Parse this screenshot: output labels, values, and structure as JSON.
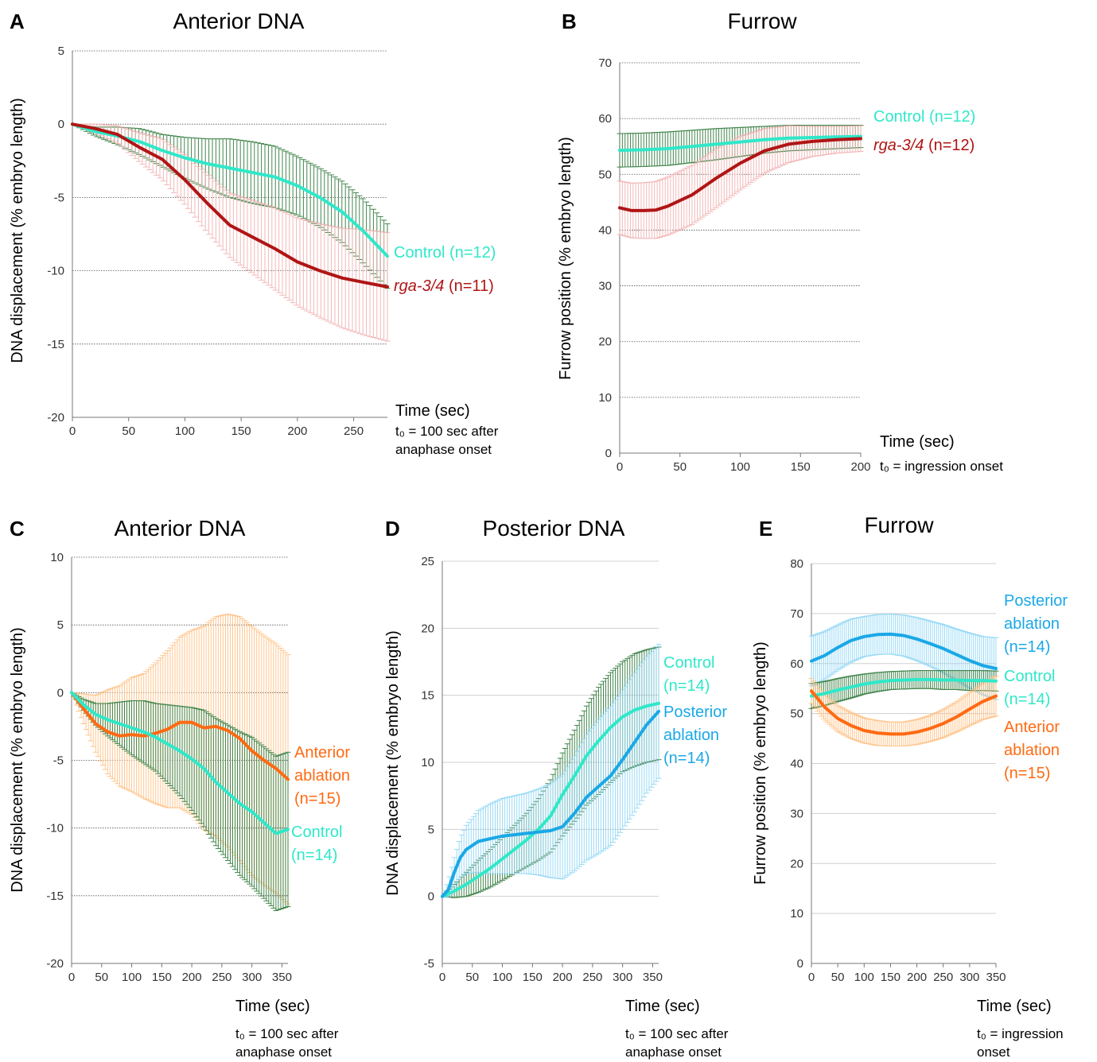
{
  "colors": {
    "control": "#2fe8c9",
    "control_err": "#2f7a3a",
    "rga": "#b01515",
    "rga_err": "#f2b0b0",
    "anterior": "#ff6a13",
    "anterior_err": "#ffbf80",
    "posterior": "#1aa8e6",
    "posterior_err": "#8fd6f5",
    "grid": "#999999"
  },
  "chart_data": [
    {
      "id": "A",
      "type": "line",
      "panel_letter": "A",
      "title": "Anterior DNA",
      "xlabel": "Time (sec)",
      "ylabel": "DNA displacement  (% embryo length)",
      "note_line1": "t₀ = 100 sec after",
      "note_line2": "anaphase onset",
      "xlim": [
        0,
        280
      ],
      "ylim": [
        -20,
        5
      ],
      "xticks": [
        0,
        50,
        100,
        150,
        200,
        250
      ],
      "yticks": [
        5,
        0,
        -5,
        -10,
        -15,
        -20
      ],
      "grid": "horizontal dotted",
      "series": [
        {
          "key": "control",
          "name": "Control",
          "n_label": "(n=12)",
          "italic": false,
          "x": [
            0,
            20,
            40,
            60,
            80,
            100,
            120,
            140,
            160,
            180,
            200,
            220,
            240,
            260,
            280
          ],
          "y": [
            0,
            -0.5,
            -0.8,
            -1.2,
            -1.8,
            -2.3,
            -2.7,
            -3.0,
            -3.3,
            -3.6,
            -4.2,
            -5.0,
            -6.0,
            -7.4,
            -9.0
          ],
          "err": [
            0,
            0.3,
            0.6,
            0.9,
            1.1,
            1.4,
            1.7,
            2.0,
            2.1,
            2.1,
            2.0,
            2.0,
            2.1,
            2.2,
            2.2
          ]
        },
        {
          "key": "rga",
          "name": "rga-3/4",
          "n_label": "(n=11)",
          "italic": true,
          "x": [
            0,
            20,
            40,
            60,
            80,
            100,
            120,
            140,
            160,
            180,
            200,
            220,
            240,
            260,
            280
          ],
          "y": [
            0,
            -0.3,
            -0.7,
            -1.6,
            -2.4,
            -3.8,
            -5.4,
            -6.9,
            -7.7,
            -8.5,
            -9.4,
            -10.0,
            -10.5,
            -10.8,
            -11.1
          ],
          "err": [
            0,
            0.3,
            0.6,
            1.0,
            1.4,
            1.7,
            2.0,
            2.2,
            2.5,
            2.8,
            3.0,
            3.2,
            3.4,
            3.6,
            3.7
          ]
        }
      ]
    },
    {
      "id": "B",
      "type": "line",
      "panel_letter": "B",
      "title": "Furrow",
      "xlabel": "Time (sec)",
      "ylabel": "Furrow position  (% embryo length)",
      "note_line1": "t₀ = ingression onset",
      "note_line2": "",
      "xlim": [
        0,
        200
      ],
      "ylim": [
        0,
        70
      ],
      "xticks": [
        0,
        50,
        100,
        150,
        200
      ],
      "yticks": [
        70,
        60,
        50,
        40,
        30,
        20,
        10,
        0
      ],
      "grid": "horizontal dotted",
      "series": [
        {
          "key": "control",
          "name": "Control",
          "n_label": "(n=12)",
          "italic": false,
          "x": [
            0,
            20,
            40,
            60,
            80,
            100,
            120,
            140,
            160,
            180,
            200
          ],
          "y": [
            54.3,
            54.4,
            54.6,
            55.0,
            55.4,
            55.8,
            56.2,
            56.5,
            56.6,
            56.7,
            56.8
          ],
          "err": [
            3.0,
            3.0,
            3.0,
            2.9,
            2.8,
            2.6,
            2.4,
            2.3,
            2.2,
            2.1,
            2.0
          ]
        },
        {
          "key": "rga",
          "name": "rga-3/4",
          "n_label": "(n=12)",
          "italic": true,
          "x": [
            0,
            10,
            20,
            30,
            40,
            60,
            80,
            100,
            120,
            140,
            160,
            180,
            200
          ],
          "y": [
            44.0,
            43.5,
            43.5,
            43.6,
            44.3,
            46.3,
            49.3,
            52.0,
            54.2,
            55.4,
            55.9,
            56.2,
            56.4
          ],
          "err": [
            4.8,
            4.9,
            5.0,
            5.1,
            5.2,
            5.3,
            5.3,
            4.8,
            4.0,
            3.3,
            2.7,
            2.4,
            2.3
          ]
        }
      ]
    },
    {
      "id": "C",
      "type": "line",
      "panel_letter": "C",
      "title": "Anterior DNA",
      "xlabel": "Time (sec)",
      "ylabel": "DNA displacement  (% embryo length)",
      "note_line1": "t₀ = 100 sec after",
      "note_line2": "anaphase onset",
      "xlim": [
        0,
        360
      ],
      "ylim": [
        -20,
        10
      ],
      "xticks": [
        0,
        50,
        100,
        150,
        200,
        250,
        300,
        350
      ],
      "yticks": [
        10,
        5,
        0,
        -5,
        -10,
        -15,
        -20
      ],
      "grid": "horizontal dotted",
      "series": [
        {
          "key": "anterior",
          "name": "Anterior",
          "name2": "ablation",
          "n_label": "(n=15)",
          "italic": false,
          "x": [
            0,
            20,
            40,
            60,
            80,
            100,
            120,
            140,
            160,
            180,
            200,
            220,
            240,
            260,
            280,
            300,
            320,
            340,
            360
          ],
          "y": [
            0,
            -1.2,
            -2.3,
            -2.9,
            -3.2,
            -3.1,
            -3.2,
            -3.0,
            -2.7,
            -2.2,
            -2.2,
            -2.6,
            -2.5,
            -2.8,
            -3.4,
            -4.3,
            -5.0,
            -5.6,
            -6.4
          ],
          "err": [
            0,
            1.1,
            2.1,
            3.1,
            3.7,
            4.2,
            4.6,
            5.2,
            5.8,
            6.3,
            6.8,
            7.5,
            8.1,
            8.6,
            9.0,
            9.2,
            9.2,
            9.2,
            9.2
          ]
        },
        {
          "key": "control",
          "name": "Control",
          "n_label": "(n=14)",
          "italic": false,
          "x": [
            0,
            20,
            40,
            60,
            80,
            100,
            120,
            140,
            160,
            180,
            200,
            220,
            240,
            260,
            280,
            300,
            320,
            340,
            360
          ],
          "y": [
            0,
            -0.9,
            -1.6,
            -2.0,
            -2.3,
            -2.6,
            -2.9,
            -3.3,
            -3.8,
            -4.3,
            -4.9,
            -5.6,
            -6.6,
            -7.4,
            -8.2,
            -8.8,
            -9.6,
            -10.4,
            -10.1
          ],
          "err": [
            0,
            0.4,
            0.8,
            1.2,
            1.6,
            2.0,
            2.3,
            2.5,
            2.9,
            3.3,
            3.8,
            4.3,
            4.7,
            5.0,
            5.3,
            5.5,
            5.6,
            5.7,
            5.7
          ]
        }
      ]
    },
    {
      "id": "D",
      "type": "line",
      "panel_letter": "D",
      "title": "Posterior DNA",
      "xlabel": "Time (sec)",
      "ylabel": "DNA displacement  (% embryo length)",
      "note_line1": "t₀ = 100 sec after",
      "note_line2": "anaphase onset",
      "xlim": [
        0,
        360
      ],
      "ylim": [
        -5,
        25
      ],
      "xticks": [
        0,
        50,
        100,
        150,
        200,
        250,
        300,
        350
      ],
      "yticks": [
        25,
        20,
        15,
        10,
        5,
        0,
        -5
      ],
      "grid": "horizontal solid",
      "series": [
        {
          "key": "control",
          "name": "Control",
          "n_label": "(n=14)",
          "italic": false,
          "x": [
            0,
            20,
            40,
            60,
            80,
            100,
            120,
            140,
            160,
            180,
            200,
            220,
            240,
            260,
            280,
            300,
            320,
            340,
            360
          ],
          "y": [
            0,
            0.4,
            0.9,
            1.5,
            2.1,
            2.8,
            3.5,
            4.2,
            5.0,
            6.0,
            7.6,
            9.0,
            10.5,
            11.6,
            12.6,
            13.4,
            13.9,
            14.2,
            14.4
          ],
          "err": [
            0,
            0.5,
            0.9,
            1.2,
            1.4,
            1.6,
            1.8,
            2.0,
            2.3,
            2.7,
            3.1,
            3.4,
            3.7,
            4.0,
            4.1,
            4.1,
            4.2,
            4.2,
            4.2
          ]
        },
        {
          "key": "posterior",
          "name": "Posterior",
          "name2": "ablation",
          "n_label": "(n=14)",
          "italic": false,
          "x": [
            0,
            10,
            20,
            30,
            40,
            60,
            80,
            100,
            120,
            140,
            160,
            180,
            200,
            220,
            240,
            260,
            280,
            300,
            320,
            340,
            360
          ],
          "y": [
            0,
            0.5,
            1.8,
            2.9,
            3.5,
            4.1,
            4.3,
            4.5,
            4.6,
            4.7,
            4.8,
            4.9,
            5.2,
            6.2,
            7.4,
            8.2,
            9.0,
            10.2,
            11.5,
            12.8,
            13.8
          ],
          "err": [
            0,
            0.6,
            1.1,
            1.5,
            1.8,
            2.3,
            2.6,
            2.8,
            2.9,
            3.0,
            3.2,
            3.5,
            3.9,
            4.3,
            4.7,
            5.0,
            5.2,
            5.2,
            5.2,
            5.1,
            5.0
          ]
        }
      ]
    },
    {
      "id": "E",
      "type": "line",
      "panel_letter": "E",
      "title": "Furrow",
      "xlabel": "Time (sec)",
      "ylabel": "Furrow position  (% embryo length)",
      "note_line1": "t₀ = ingression",
      "note_line2": "onset",
      "xlim": [
        0,
        350
      ],
      "ylim": [
        0,
        80
      ],
      "xticks": [
        0,
        50,
        100,
        150,
        200,
        250,
        300,
        350
      ],
      "yticks": [
        80,
        70,
        60,
        50,
        40,
        30,
        20,
        10,
        0
      ],
      "grid": "horizontal solid",
      "series": [
        {
          "key": "posterior",
          "name": "Posterior",
          "name2": "ablation",
          "n_label": "(n=14)",
          "italic": false,
          "x": [
            0,
            25,
            50,
            75,
            100,
            125,
            150,
            175,
            200,
            225,
            250,
            275,
            300,
            325,
            350
          ],
          "y": [
            60.5,
            61.6,
            63.2,
            64.6,
            65.4,
            65.8,
            65.9,
            65.6,
            64.9,
            64.0,
            63.0,
            61.8,
            60.6,
            59.6,
            59.0
          ],
          "err": [
            5.0,
            4.8,
            4.5,
            4.3,
            4.0,
            4.0,
            4.0,
            4.1,
            4.3,
            4.5,
            4.8,
            5.1,
            5.5,
            5.8,
            6.2
          ]
        },
        {
          "key": "control",
          "name": "Control",
          "n_label": "(n=14)",
          "italic": false,
          "x": [
            0,
            25,
            50,
            75,
            100,
            125,
            150,
            175,
            200,
            225,
            250,
            275,
            300,
            325,
            350
          ],
          "y": [
            53.5,
            54.0,
            54.7,
            55.3,
            55.9,
            56.3,
            56.6,
            56.7,
            56.8,
            56.8,
            56.7,
            56.7,
            56.6,
            56.6,
            56.5
          ],
          "err": [
            2.5,
            2.4,
            2.3,
            2.2,
            2.0,
            1.9,
            1.8,
            1.8,
            1.8,
            1.8,
            1.9,
            1.9,
            2.0,
            2.0,
            2.0
          ]
        },
        {
          "key": "anterior",
          "name": "Anterior",
          "name2": "ablation",
          "n_label": "(n=15)",
          "italic": false,
          "x": [
            0,
            25,
            50,
            75,
            100,
            125,
            150,
            175,
            200,
            225,
            250,
            275,
            300,
            325,
            350
          ],
          "y": [
            54.5,
            51.3,
            49.0,
            47.6,
            46.6,
            46.1,
            45.9,
            45.9,
            46.3,
            47.0,
            48.0,
            49.3,
            50.9,
            52.4,
            53.5
          ],
          "err": [
            2.5,
            2.6,
            2.6,
            2.6,
            2.5,
            2.5,
            2.4,
            2.4,
            2.5,
            2.6,
            2.8,
            3.0,
            3.3,
            3.6,
            4.0
          ]
        }
      ]
    }
  ]
}
